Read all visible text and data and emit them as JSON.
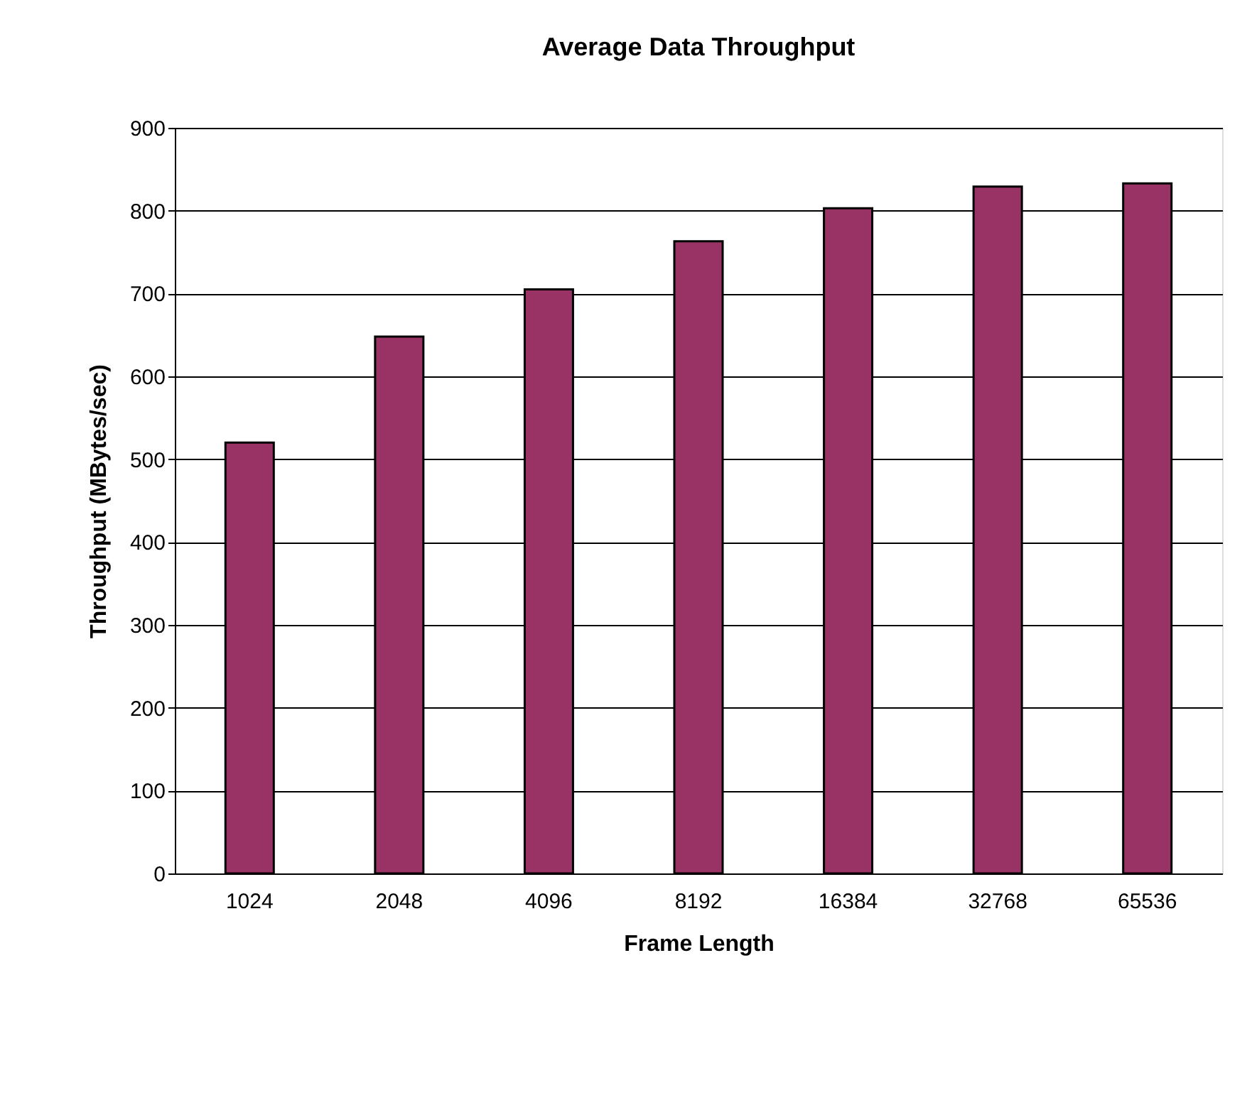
{
  "chart_data": {
    "type": "bar",
    "title": "Average Data Throughput",
    "xlabel": "Frame Length",
    "ylabel": "Throughput (MBytes/sec)",
    "categories": [
      "1024",
      "2048",
      "4096",
      "8192",
      "16384",
      "32768",
      "65536"
    ],
    "values": [
      520,
      648,
      705,
      763,
      803,
      829,
      833
    ],
    "color": "#993366",
    "ylim": [
      0,
      900
    ],
    "yticks": [
      0,
      100,
      200,
      300,
      400,
      500,
      600,
      700,
      800,
      900
    ],
    "grid": "y"
  }
}
